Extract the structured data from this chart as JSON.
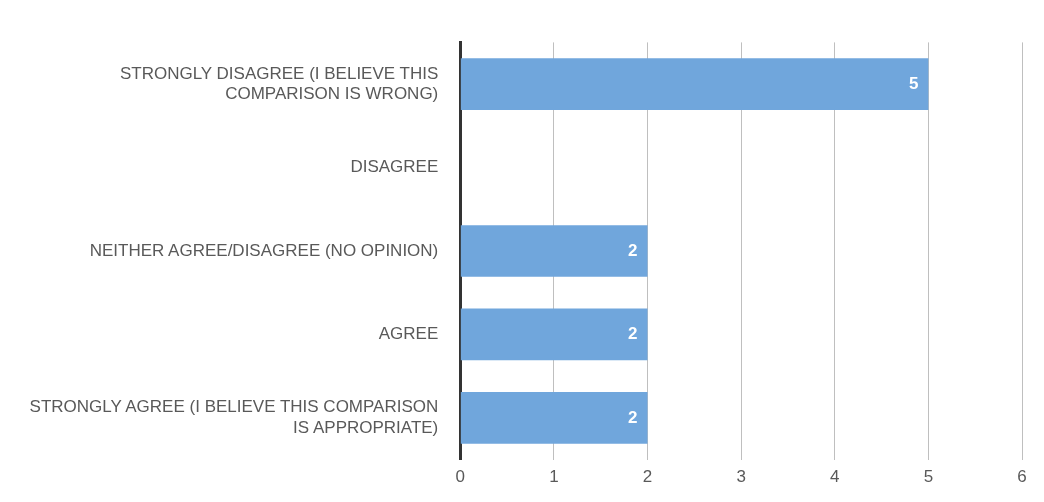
{
  "chart_data": {
    "type": "bar",
    "orientation": "horizontal",
    "categories": [
      "STRONGLY DISAGREE (I BELIEVE THIS COMPARISON IS WRONG)",
      "DISAGREE",
      "NEITHER AGREE/DISAGREE (NO OPINION)",
      "AGREE",
      "STRONGLY AGREE (I BELIEVE THIS COMPARISON IS APPROPRIATE)"
    ],
    "values": [
      5,
      0,
      2,
      2,
      2
    ],
    "value_labels": [
      "5",
      null,
      "2",
      "2",
      "2"
    ],
    "color": "#70a6dc",
    "xlim": [
      0,
      6
    ],
    "xticks": [
      0,
      1,
      2,
      3,
      4,
      5,
      6
    ],
    "grid": "x",
    "legend": false
  }
}
